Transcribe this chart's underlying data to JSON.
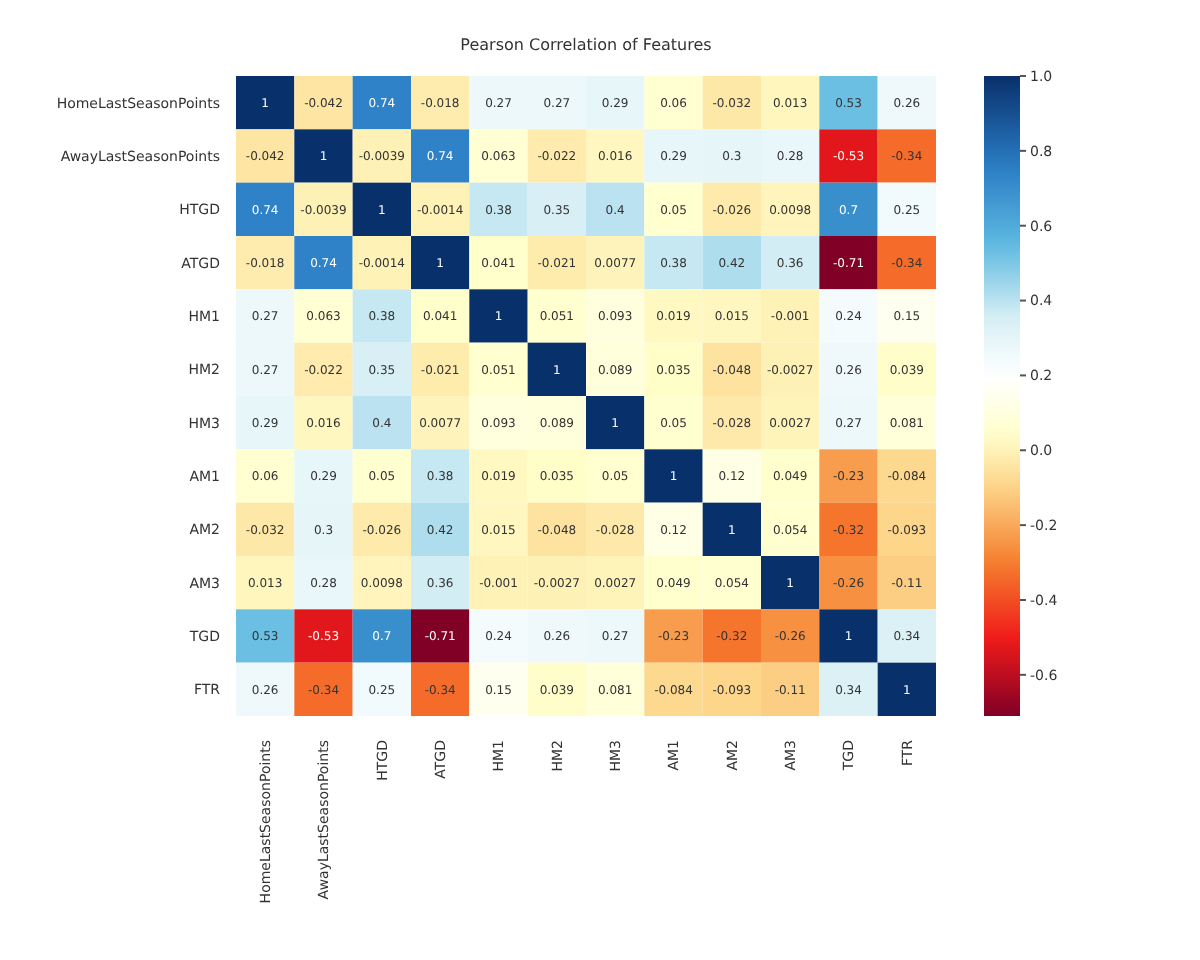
{
  "chart_data": {
    "type": "heatmap",
    "title": "Pearson Correlation of Features",
    "categories": [
      "HomeLastSeasonPoints",
      "AwayLastSeasonPoints",
      "HTGD",
      "ATGD",
      "HM1",
      "HM2",
      "HM3",
      "AM1",
      "AM2",
      "AM3",
      "TGD",
      "FTR"
    ],
    "y_categories": [
      "HomeLastSeasonPoints",
      "AwayLastSeasonPoints",
      "HTGD",
      "ATGD",
      "HM1",
      "HM2",
      "HM3",
      "AM1",
      "AM2",
      "AM3",
      "TGD",
      "FTR"
    ],
    "cells": [
      [
        1,
        -0.042,
        0.74,
        -0.018,
        0.27,
        0.27,
        0.29,
        0.06,
        -0.032,
        0.013,
        0.53,
        0.26
      ],
      [
        -0.042,
        1,
        -0.0039,
        0.74,
        0.063,
        -0.022,
        0.016,
        0.29,
        0.3,
        0.28,
        -0.53,
        -0.34
      ],
      [
        0.74,
        -0.0039,
        1,
        -0.0014,
        0.38,
        0.35,
        0.4,
        0.05,
        -0.026,
        0.0098,
        0.7,
        0.25
      ],
      [
        -0.018,
        0.74,
        -0.0014,
        1,
        0.041,
        -0.021,
        0.0077,
        0.38,
        0.42,
        0.36,
        -0.71,
        -0.34
      ],
      [
        0.27,
        0.063,
        0.38,
        0.041,
        1,
        0.051,
        0.093,
        0.019,
        0.015,
        -0.001,
        0.24,
        0.15
      ],
      [
        0.27,
        -0.022,
        0.35,
        -0.021,
        0.051,
        1,
        0.089,
        0.035,
        -0.048,
        -0.0027,
        0.26,
        0.039
      ],
      [
        0.29,
        0.016,
        0.4,
        0.0077,
        0.093,
        0.089,
        1,
        0.05,
        -0.028,
        0.0027,
        0.27,
        0.081
      ],
      [
        0.06,
        0.29,
        0.05,
        0.38,
        0.019,
        0.035,
        0.05,
        1,
        0.12,
        0.049,
        -0.23,
        -0.084
      ],
      [
        -0.032,
        0.3,
        -0.026,
        0.42,
        0.015,
        -0.048,
        -0.028,
        0.12,
        1,
        0.054,
        -0.32,
        -0.093
      ],
      [
        0.013,
        0.28,
        0.0098,
        0.36,
        -0.001,
        -0.0027,
        0.0027,
        0.049,
        0.054,
        1,
        -0.26,
        -0.11
      ],
      [
        0.53,
        -0.53,
        0.7,
        -0.71,
        0.24,
        0.26,
        0.27,
        -0.23,
        -0.32,
        -0.26,
        1,
        0.34
      ],
      [
        0.26,
        -0.34,
        0.25,
        -0.34,
        0.15,
        0.039,
        0.081,
        -0.084,
        -0.093,
        -0.11,
        0.34,
        1
      ]
    ],
    "data_labels": true,
    "clim": [
      -0.71,
      1
    ],
    "cticks": [
      {
        "value": 1,
        "label": "1.0"
      },
      {
        "value": 0.8,
        "label": "0.8"
      },
      {
        "value": 0.6,
        "label": "0.6"
      },
      {
        "value": 0.4,
        "label": "0.4"
      },
      {
        "value": 0.2,
        "label": "0.2"
      },
      {
        "value": 0,
        "label": "0.0"
      },
      {
        "value": -0.2,
        "label": "-0.2"
      },
      {
        "value": -0.4,
        "label": "-0.4"
      },
      {
        "value": -0.6,
        "label": "-0.6"
      }
    ]
  }
}
